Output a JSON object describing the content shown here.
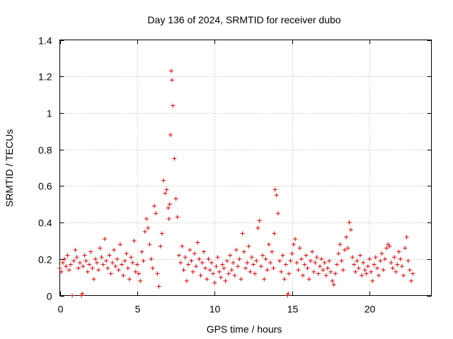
{
  "chart_data": {
    "type": "scatter",
    "title": "Day 136 of 2024, SRMTID for receiver dubo",
    "xlabel": "GPS time / hours",
    "ylabel": "SRMTID / TECUs",
    "xlim": [
      0,
      24
    ],
    "ylim": [
      0,
      1.4
    ],
    "xticks": [
      0,
      5,
      10,
      15,
      20
    ],
    "xtick_labels": [
      "0",
      "5",
      "10",
      "15",
      "20"
    ],
    "yticks": [
      0,
      0.2,
      0.4,
      0.6,
      0.8,
      1.0,
      1.2,
      1.4
    ],
    "ytick_labels": [
      "0",
      "0.2",
      "0.4",
      "0.6",
      "0.8",
      "1",
      "1.2",
      "1.4"
    ],
    "grid": true,
    "marker": "+",
    "color": "#e00000",
    "series": [
      {
        "name": "SRMTID",
        "x": [
          0.0,
          0.1,
          0.2,
          0.3,
          0.4,
          0.5,
          0.6,
          0.7,
          0.8,
          0.9,
          1.0,
          1.1,
          1.2,
          1.3,
          1.4,
          1.45,
          1.5,
          1.6,
          1.7,
          1.8,
          1.9,
          2.0,
          2.1,
          2.2,
          2.3,
          2.4,
          2.5,
          2.6,
          2.7,
          2.8,
          2.9,
          3.0,
          3.1,
          3.2,
          3.3,
          3.4,
          3.5,
          3.6,
          3.7,
          3.8,
          3.9,
          4.0,
          4.1,
          4.2,
          4.3,
          4.4,
          4.5,
          4.6,
          4.7,
          4.8,
          4.9,
          5.0,
          5.1,
          5.2,
          5.3,
          5.4,
          5.5,
          5.6,
          5.7,
          5.8,
          5.9,
          6.0,
          6.1,
          6.2,
          6.3,
          6.4,
          6.5,
          6.6,
          6.7,
          6.8,
          6.9,
          7.0,
          7.05,
          7.1,
          7.15,
          7.2,
          7.25,
          7.3,
          7.4,
          7.5,
          7.6,
          7.7,
          7.8,
          7.9,
          8.0,
          8.1,
          8.2,
          8.3,
          8.4,
          8.5,
          8.6,
          8.7,
          8.8,
          8.9,
          9.0,
          9.1,
          9.2,
          9.3,
          9.4,
          9.5,
          9.6,
          9.7,
          9.8,
          9.9,
          10.0,
          10.1,
          10.2,
          10.3,
          10.4,
          10.5,
          10.6,
          10.7,
          10.8,
          10.9,
          11.0,
          11.1,
          11.2,
          11.3,
          11.4,
          11.5,
          11.6,
          11.7,
          11.8,
          11.9,
          12.0,
          12.1,
          12.2,
          12.3,
          12.4,
          12.5,
          12.6,
          12.7,
          12.8,
          12.9,
          13.0,
          13.1,
          13.2,
          13.3,
          13.4,
          13.5,
          13.6,
          13.7,
          13.8,
          13.85,
          13.9,
          14.0,
          14.1,
          14.2,
          14.3,
          14.4,
          14.5,
          14.6,
          14.7,
          14.75,
          14.8,
          14.9,
          15.0,
          15.1,
          15.2,
          15.3,
          15.4,
          15.5,
          15.6,
          15.7,
          15.8,
          15.9,
          16.0,
          16.1,
          16.2,
          16.3,
          16.4,
          16.5,
          16.6,
          16.7,
          16.8,
          16.9,
          17.0,
          17.1,
          17.2,
          17.3,
          17.4,
          17.5,
          17.6,
          17.7,
          17.8,
          17.9,
          18.0,
          18.1,
          18.2,
          18.3,
          18.4,
          18.5,
          18.6,
          18.7,
          18.8,
          18.9,
          19.0,
          19.1,
          19.2,
          19.3,
          19.4,
          19.5,
          19.6,
          19.7,
          19.8,
          19.9,
          20.0,
          20.1,
          20.2,
          20.3,
          20.4,
          20.5,
          20.6,
          20.7,
          20.8,
          20.9,
          21.0,
          21.1,
          21.2,
          21.3,
          21.4,
          21.5,
          21.6,
          21.7,
          21.8,
          21.9,
          22.0,
          22.1,
          22.2,
          22.3,
          22.4,
          22.5,
          22.6,
          22.7,
          22.8
        ],
        "y": [
          0.15,
          0.13,
          0.18,
          0.2,
          0.16,
          0.22,
          0.14,
          0.17,
          0.0,
          0.19,
          0.25,
          0.21,
          0.15,
          0.18,
          0.0,
          0.01,
          0.16,
          0.22,
          0.19,
          0.13,
          0.17,
          0.24,
          0.15,
          0.09,
          0.2,
          0.18,
          0.14,
          0.26,
          0.21,
          0.17,
          0.31,
          0.19,
          0.15,
          0.22,
          0.12,
          0.18,
          0.25,
          0.16,
          0.2,
          0.14,
          0.28,
          0.17,
          0.11,
          0.19,
          0.23,
          0.15,
          0.09,
          0.21,
          0.18,
          0.3,
          0.13,
          0.17,
          0.12,
          0.08,
          0.24,
          0.19,
          0.35,
          0.42,
          0.37,
          0.28,
          0.2,
          0.15,
          0.49,
          0.45,
          0.12,
          0.05,
          0.27,
          0.34,
          0.63,
          0.56,
          0.58,
          0.48,
          0.42,
          0.5,
          0.88,
          1.23,
          1.18,
          1.04,
          0.75,
          0.53,
          0.43,
          0.22,
          0.18,
          0.27,
          0.14,
          0.21,
          0.08,
          0.17,
          0.25,
          0.19,
          0.13,
          0.23,
          0.16,
          0.29,
          0.2,
          0.11,
          0.18,
          0.24,
          0.15,
          0.09,
          0.2,
          0.14,
          0.18,
          0.12,
          0.07,
          0.16,
          0.21,
          0.13,
          0.1,
          0.17,
          0.15,
          0.08,
          0.19,
          0.12,
          0.22,
          0.14,
          0.18,
          0.11,
          0.25,
          0.16,
          0.2,
          0.09,
          0.34,
          0.24,
          0.15,
          0.18,
          0.27,
          0.13,
          0.21,
          0.17,
          0.12,
          0.19,
          0.37,
          0.41,
          0.16,
          0.22,
          0.09,
          0.2,
          0.14,
          0.28,
          0.18,
          0.24,
          0.15,
          0.34,
          0.58,
          0.55,
          0.45,
          0.19,
          0.13,
          0.22,
          0.09,
          0.17,
          0.0,
          0.01,
          0.12,
          0.19,
          0.23,
          0.28,
          0.31,
          0.18,
          0.14,
          0.26,
          0.2,
          0.11,
          0.17,
          0.22,
          0.15,
          0.09,
          0.19,
          0.24,
          0.13,
          0.18,
          0.21,
          0.12,
          0.16,
          0.2,
          0.14,
          0.18,
          0.11,
          0.15,
          0.19,
          0.13,
          0.08,
          0.06,
          0.12,
          0.17,
          0.23,
          0.28,
          0.19,
          0.14,
          0.25,
          0.32,
          0.26,
          0.4,
          0.36,
          0.21,
          0.17,
          0.13,
          0.19,
          0.15,
          0.22,
          0.11,
          0.18,
          0.14,
          0.12,
          0.16,
          0.2,
          0.13,
          0.08,
          0.17,
          0.21,
          0.15,
          0.11,
          0.19,
          0.23,
          0.14,
          0.2,
          0.26,
          0.28,
          0.27,
          0.18,
          0.15,
          0.21,
          0.13,
          0.17,
          0.24,
          0.2,
          0.16,
          0.11,
          0.26,
          0.32,
          0.19,
          0.14,
          0.08,
          0.12
        ]
      }
    ]
  }
}
